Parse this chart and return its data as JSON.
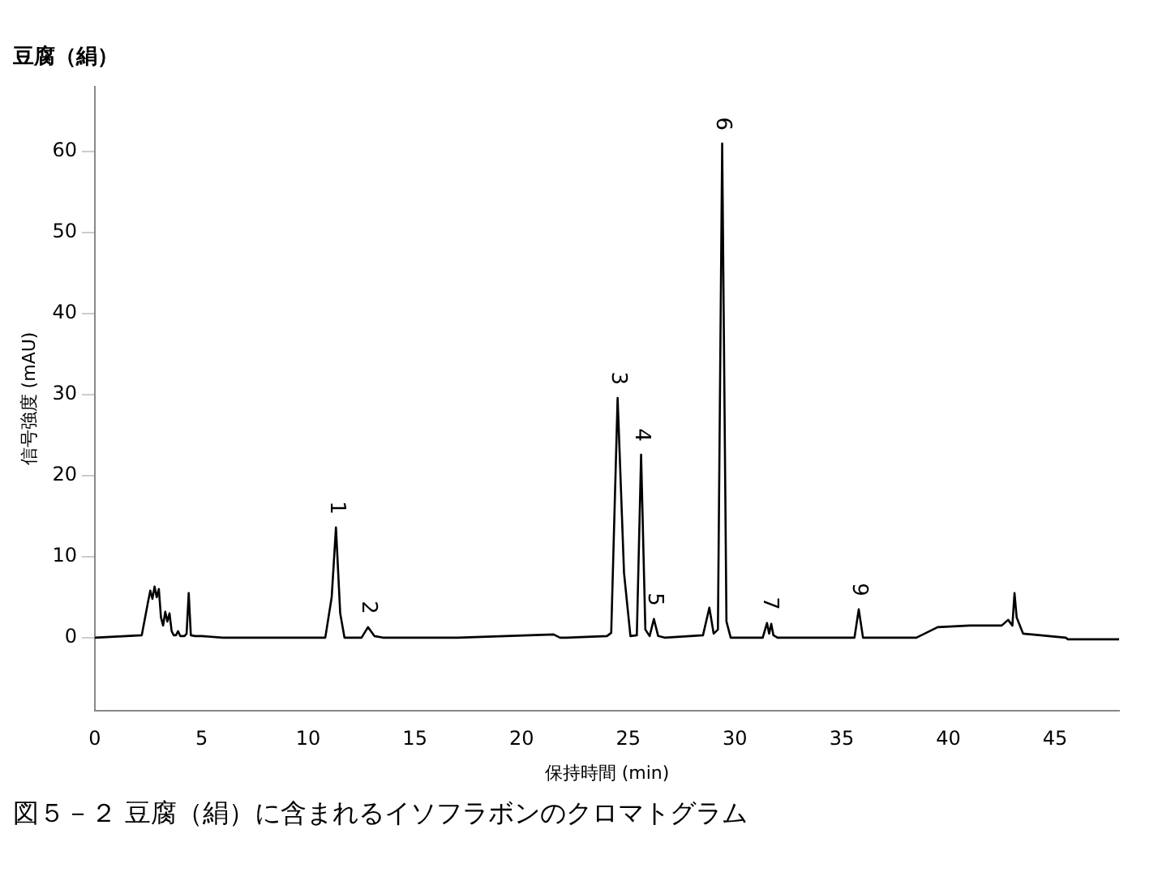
{
  "chart_data": {
    "type": "line",
    "title": "豆腐（絹）",
    "xlabel": "保持時間 (min)",
    "ylabel": "信号強度 (mAU)",
    "annotations": [
      {
        "text": "1",
        "x": 11.3,
        "y": 13.6
      },
      {
        "text": "2",
        "x": 12.8,
        "y": 1.3
      },
      {
        "text": "3",
        "x": 24.5,
        "y": 29.6
      },
      {
        "text": "4",
        "x": 25.6,
        "y": 22.6
      },
      {
        "text": "5",
        "x": 26.2,
        "y": 2.3
      },
      {
        "text": "6",
        "x": 29.4,
        "y": 61
      },
      {
        "text": "7",
        "x": 31.6,
        "y": 1.8
      },
      {
        "text": "9",
        "x": 35.8,
        "y": 3.5
      },
      "図５－２ 豆腐（絹）に含まれるイソフラボンのクロマトグラム"
    ],
    "series": [
      {
        "color": "#000000",
        "x": [
          0,
          2.2,
          2.5,
          2.6,
          2.7,
          2.8,
          2.9,
          3.0,
          3.1,
          3.2,
          3.3,
          3.4,
          3.5,
          3.6,
          3.7,
          3.8,
          3.9,
          4.0,
          4.2,
          4.3,
          4.4,
          4.5,
          4.7,
          5.0,
          6.0,
          9.5,
          10.8,
          11.1,
          11.3,
          11.5,
          11.7,
          12.5,
          12.8,
          13.1,
          13.5,
          17,
          21.5,
          21.8,
          22.1,
          24.0,
          24.2,
          24.5,
          24.8,
          25.1,
          25.4,
          25.6,
          25.8,
          26.0,
          26.2,
          26.4,
          26.7,
          28.5,
          28.8,
          29.0,
          29.2,
          29.4,
          29.6,
          29.8,
          31.3,
          31.5,
          31.6,
          31.7,
          31.8,
          32.0,
          35.6,
          35.8,
          36.0,
          38.5,
          39.5,
          41,
          42.5,
          42.8,
          43.0,
          43.1,
          43.2,
          43.5,
          45.5,
          45.6,
          48
        ],
        "values": [
          0,
          0.3,
          4.5,
          5.8,
          4.8,
          6.3,
          5.0,
          6.0,
          2.5,
          1.5,
          3.2,
          2.0,
          3.0,
          0.8,
          0.3,
          0.3,
          0.8,
          0.2,
          0.2,
          0.5,
          5.5,
          0.3,
          0.2,
          0.2,
          0,
          0,
          0,
          5,
          13.6,
          3,
          0,
          0,
          1.3,
          0.2,
          0,
          0,
          0.4,
          0,
          0,
          0.2,
          0.6,
          29.6,
          8,
          0.2,
          0.3,
          22.6,
          1,
          0.2,
          2.3,
          0.2,
          0,
          0.3,
          3.7,
          0.5,
          1,
          61,
          2,
          0,
          0,
          1.8,
          0.5,
          1.7,
          0.3,
          0,
          0,
          3.5,
          0,
          0,
          1.3,
          1.5,
          1.5,
          2.2,
          1.5,
          5.5,
          2.5,
          0.5,
          0,
          -0.2,
          -0.2
        ]
      }
    ],
    "xlim": [
      0,
      48
    ],
    "xticks": [
      0,
      5,
      10,
      15,
      20,
      25,
      30,
      35,
      40,
      45
    ],
    "ylim": [
      -9,
      68
    ],
    "yticks": [
      0,
      10,
      20,
      30,
      40,
      50,
      60
    ],
    "grid": false,
    "legend": false,
    "marker": "none",
    "line_style": "solid"
  }
}
